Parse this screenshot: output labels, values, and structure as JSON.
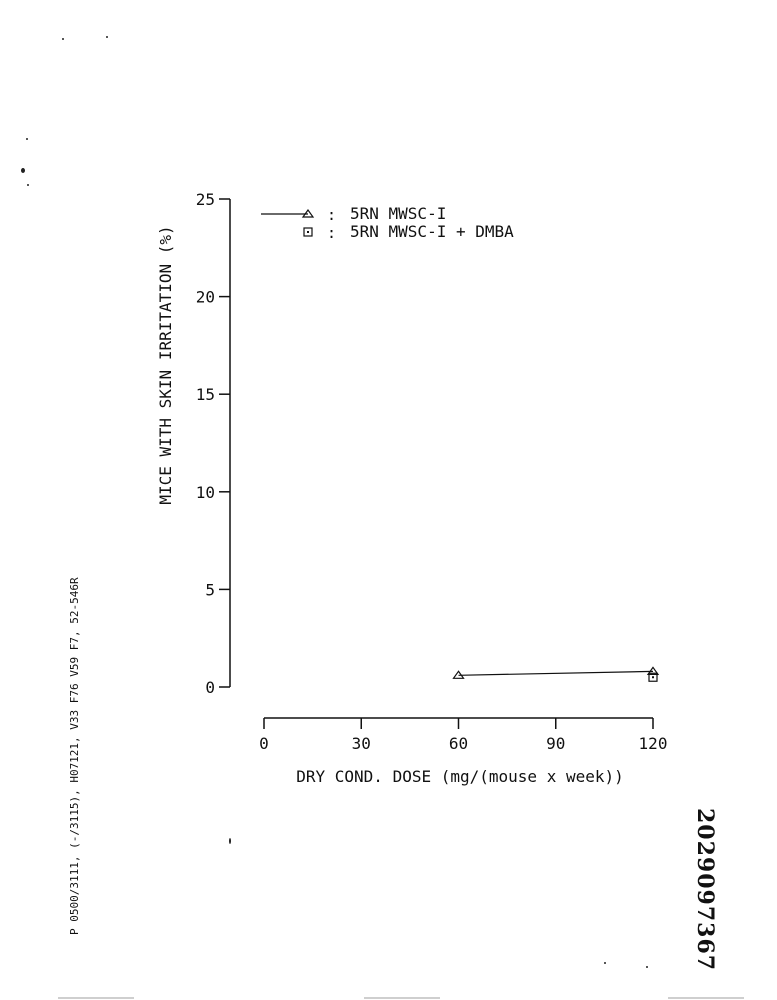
{
  "side_code": "P 0500/3111, (-/3115), H07121, V33 F76 V59 F7, 52-546R",
  "document_number": "2029097367",
  "chart_data": {
    "type": "line",
    "title": "",
    "xlabel": "DRY COND. DOSE (mg/(mouse x week))",
    "ylabel": "MICE WITH SKIN IRRITATION (%)",
    "xlim": [
      0,
      120
    ],
    "ylim": [
      0,
      25
    ],
    "x_ticks": [
      0,
      30,
      60,
      90,
      120
    ],
    "y_ticks": [
      0,
      5,
      10,
      15,
      20,
      25
    ],
    "grid": false,
    "legend_position": "top-left",
    "series": [
      {
        "name": "5RN MWSC-I",
        "marker": "triangle",
        "legend_sep": ":",
        "points": [
          [
            60,
            0.6
          ],
          [
            120,
            0.8
          ]
        ]
      },
      {
        "name": "5RN MWSC-I + DMBA",
        "marker": "square",
        "legend_sep": ":",
        "points": [
          [
            120,
            0.5
          ]
        ]
      }
    ]
  }
}
